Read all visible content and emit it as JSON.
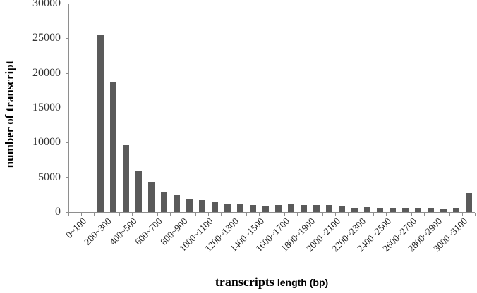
{
  "chart_data": {
    "type": "bar",
    "title": "",
    "xlabel": "transcripts length (bp)",
    "xlabel_parts": [
      "transcripts",
      "length (bp)"
    ],
    "ylabel": "number of transcript",
    "ylim": [
      0,
      30000
    ],
    "yticks": [
      0,
      5000,
      10000,
      15000,
      20000,
      25000,
      30000
    ],
    "xtick_labels": [
      "0~100",
      "200~300",
      "400~500",
      "600~700",
      "800~900",
      "1000~1100",
      "1200~1300",
      "1400~1500",
      "1600~1700",
      "1800~1900",
      "2000~2100",
      "2200~2300",
      "2400~2500",
      "2600~2700",
      "2800~2900",
      "3000~3100"
    ],
    "label_every_n_bins": 2,
    "bin_width_bp": 100,
    "categories": [
      "0~100",
      "100~200",
      "200~300",
      "300~400",
      "400~500",
      "500~600",
      "600~700",
      "700~800",
      "800~900",
      "900~1000",
      "1000~1100",
      "1100~1200",
      "1200~1300",
      "1300~1400",
      "1400~1500",
      "1500~1600",
      "1600~1700",
      "1700~1800",
      "1800~1900",
      "1900~2000",
      "2000~2100",
      "2100~2200",
      "2200~2300",
      "2300~2400",
      "2400~2500",
      "2500~2600",
      "2600~2700",
      "2700~2800",
      "2800~2900",
      "2900~3000",
      "3000~3100",
      "3100~3200"
    ],
    "values": [
      0,
      0,
      25400,
      18800,
      9650,
      5900,
      4250,
      2950,
      2400,
      1950,
      1700,
      1450,
      1250,
      1150,
      1000,
      950,
      980,
      1150,
      1040,
      980,
      980,
      780,
      620,
      710,
      580,
      500,
      580,
      500,
      500,
      400,
      470,
      2790
    ],
    "grid": false,
    "legend": "none",
    "colors": {
      "bar": "#5a5a5a",
      "axis": "#8e8e8e",
      "tick_text": "#333333",
      "title_text": "#000000",
      "background": "#ffffff"
    }
  }
}
